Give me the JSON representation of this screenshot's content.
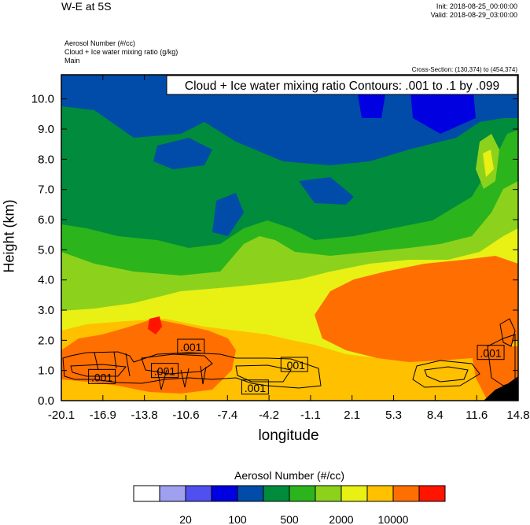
{
  "header": {
    "title": "W-E at 5S",
    "init": "Init: 2018-08-25_00:00:00",
    "valid": "Valid: 2018-08-29_03:00:00",
    "field_lines": [
      "Aerosol Number   (#/cc)",
      "Cloud + Ice water mixing ratio   (g/kg)",
      "Main"
    ],
    "cross_section": "Cross-Section: (130,374) to (454,374)"
  },
  "chart_data": {
    "type": "heatmap",
    "title": "W-E at 5S",
    "xlabel": "longitude",
    "ylabel": "Height (km)",
    "x_ticks": [
      "-20.1",
      "-16.9",
      "-13.8",
      "-10.6",
      "-7.4",
      "-4.2",
      "-1.1",
      "2.1",
      "5.3",
      "8.4",
      "11.6",
      "14.8"
    ],
    "y_ticks": [
      "0.0",
      "1.0",
      "2.0",
      "3.0",
      "4.0",
      "5.0",
      "6.0",
      "7.0",
      "8.0",
      "9.0",
      "10.0"
    ],
    "xlim": [
      -20.1,
      14.8
    ],
    "ylim": [
      0.0,
      10.8
    ],
    "contour_info": "Cloud + Ice water mixing ratio Contours: .001 to .1 by .099",
    "contour_labels": [
      {
        "text": ".001",
        "x": -10.2,
        "y": 1.8
      },
      {
        "text": ".001",
        "x": -12.2,
        "y": 1.0
      },
      {
        "text": ".001",
        "x": -17.0,
        "y": 0.8
      },
      {
        "text": ".001",
        "x": -2.3,
        "y": 1.2
      },
      {
        "text": ".001",
        "x": -5.3,
        "y": 0.45
      },
      {
        "text": ".001",
        "x": 12.7,
        "y": 1.6
      }
    ],
    "colorbar": {
      "title": "Aerosol Number  (#/cc)",
      "colors": [
        "#ffffff",
        "#a0a0f0",
        "#5050f0",
        "#0000e0",
        "#004ca8",
        "#008c3c",
        "#2cb41c",
        "#8cd21c",
        "#e8f014",
        "#ffc000",
        "#ff6e00",
        "#ff1400"
      ],
      "labels": [
        "20",
        "100",
        "500",
        "2000",
        "10000"
      ]
    }
  }
}
